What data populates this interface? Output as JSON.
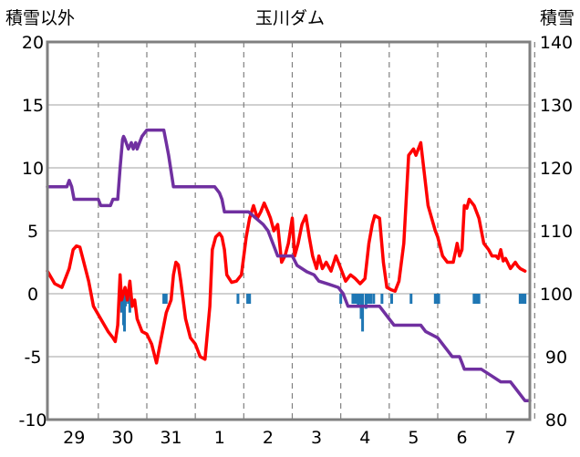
{
  "chart_data": {
    "type": "line",
    "title": "玉川ダム",
    "left_axis_label": "積雪以外",
    "right_axis_label": "積雪",
    "left_ylim": [
      -10,
      20
    ],
    "right_ylim": [
      80,
      140
    ],
    "left_ticks": [
      "20",
      "15",
      "10",
      "5",
      "0",
      "-5",
      "-10"
    ],
    "right_ticks": [
      "140",
      "130",
      "120",
      "110",
      "100",
      "90",
      "80"
    ],
    "x_range": [
      -0.55,
      9.4
    ],
    "categories": [
      "29",
      "30",
      "31",
      "1",
      "2",
      "3",
      "4",
      "5",
      "6",
      "7"
    ],
    "grid": true,
    "colors": {
      "temperature": "#ff0000",
      "snow": "#7030a0",
      "precip": "#1f77b4",
      "frame": "#808080"
    },
    "series": [
      {
        "axis": "left",
        "style": "line",
        "x": [
          -0.55,
          -0.4,
          -0.25,
          -0.1,
          -0.02,
          0.05,
          0.12,
          0.2,
          0.3,
          0.4,
          0.55,
          0.7,
          0.8,
          0.85,
          0.9,
          0.95,
          0.98,
          1.05,
          1.1,
          1.15,
          1.2,
          1.25,
          1.3,
          1.4,
          1.5,
          1.6,
          1.7,
          1.8,
          1.9,
          2.0,
          2.05,
          2.1,
          2.15,
          2.2,
          2.3,
          2.4,
          2.5,
          2.6,
          2.7,
          2.8,
          2.85,
          2.92,
          3.0,
          3.05,
          3.1,
          3.15,
          3.25,
          3.35,
          3.45,
          3.55,
          3.62,
          3.7,
          3.78,
          3.85,
          3.92,
          4.0,
          4.05,
          4.12,
          4.2,
          4.28,
          4.35,
          4.42,
          4.5,
          4.55,
          4.62,
          4.7,
          4.78,
          4.85,
          4.92,
          5.0,
          5.05,
          5.12,
          5.2,
          5.3,
          5.4,
          5.5,
          5.6,
          5.7,
          5.8,
          5.9,
          6.0,
          6.08,
          6.15,
          6.2,
          6.3,
          6.38,
          6.45,
          6.55,
          6.62,
          6.7,
          6.8,
          6.9,
          7.0,
          7.05,
          7.15,
          7.3,
          7.45,
          7.5,
          7.6,
          7.7,
          7.82,
          7.9,
          7.95,
          8.0,
          8.05,
          8.1,
          8.15,
          8.25,
          8.35,
          8.45,
          8.55,
          8.62,
          8.7,
          8.75,
          8.8,
          8.85,
          8.9,
          9.0,
          9.1,
          9.15,
          9.2,
          9.3
        ],
        "y": [
          1.8,
          0.8,
          0.5,
          2.0,
          3.5,
          3.8,
          3.7,
          2.5,
          1.0,
          -1.0,
          -2.0,
          -3.0,
          -3.5,
          -3.8,
          -2.5,
          1.5,
          -0.5,
          0.5,
          -0.5,
          1.0,
          -1.0,
          -0.5,
          -2.0,
          -3.0,
          -3.2,
          -4.0,
          -5.5,
          -3.5,
          -1.5,
          -0.5,
          1.5,
          2.5,
          2.3,
          1.0,
          -2.0,
          -3.5,
          -4.0,
          -5.0,
          -5.2,
          -1.0,
          3.5,
          4.5,
          4.8,
          4.5,
          3.5,
          1.5,
          0.9,
          1.0,
          1.5,
          4.5,
          6.0,
          7.0,
          6.0,
          6.5,
          7.2,
          6.5,
          6.0,
          5.0,
          5.5,
          2.5,
          3.0,
          4.0,
          6.0,
          3.0,
          4.0,
          5.5,
          6.2,
          4.5,
          3.0,
          2.0,
          3.0,
          2.0,
          2.5,
          1.8,
          3.0,
          2.0,
          1.0,
          1.5,
          1.2,
          0.8,
          1.2,
          4.0,
          5.5,
          6.2,
          6.0,
          2.5,
          0.5,
          0.3,
          0.2,
          1.0,
          4.0,
          11.0,
          11.5,
          11.0,
          12.0,
          7.0,
          5.0,
          4.5,
          3.0,
          2.5,
          2.5,
          4.0,
          3.0,
          3.5,
          7.0,
          6.8,
          7.5,
          7.0,
          6.0,
          4.0,
          3.5,
          3.0,
          3.0,
          2.8,
          3.5,
          2.6,
          2.8,
          2.0,
          2.5,
          2.2,
          2.0,
          1.8
        ]
      },
      {
        "axis": "right",
        "style": "line",
        "x": [
          -0.55,
          -0.15,
          -0.1,
          -0.05,
          0.0,
          0.5,
          0.55,
          0.75,
          0.8,
          0.9,
          0.95,
          1.0,
          1.02,
          1.05,
          1.12,
          1.18,
          1.22,
          1.27,
          1.3,
          1.35,
          1.4,
          1.45,
          1.5,
          1.55,
          1.6,
          1.65,
          1.75,
          1.85,
          1.9,
          1.95,
          2.05,
          2.5,
          2.9,
          2.95,
          3.0,
          3.05,
          3.1,
          3.15,
          3.2,
          3.6,
          3.9,
          4.0,
          4.1,
          4.2,
          4.25,
          4.5,
          4.6,
          4.8,
          4.95,
          5.05,
          5.25,
          5.45,
          5.55,
          5.65,
          5.9,
          6.3,
          6.6,
          6.7,
          6.95,
          7.15,
          7.25,
          7.5,
          7.7,
          7.8,
          7.95,
          8.0,
          8.05,
          8.4,
          8.6,
          8.8,
          9.0,
          9.1,
          9.3,
          9.4
        ],
        "y": [
          117,
          117,
          118,
          117,
          115,
          115,
          114,
          114,
          115,
          115,
          120,
          124.5,
          125,
          124.5,
          123,
          124,
          123,
          124,
          123,
          124,
          125,
          125.5,
          126,
          126,
          126,
          126,
          126,
          126,
          124,
          122,
          117,
          117,
          117,
          116.5,
          116,
          115,
          113,
          113,
          113,
          113,
          111,
          110,
          108,
          106,
          106,
          106,
          104.5,
          103.5,
          103,
          102,
          101.5,
          101,
          100,
          98,
          98,
          98,
          95,
          95,
          95,
          95,
          94,
          93,
          91,
          90,
          90,
          89,
          88,
          88,
          87,
          86,
          86,
          85,
          83,
          83
        ]
      },
      {
        "axis": "left",
        "style": "bar",
        "x": [
          0.98,
          1.0,
          1.02,
          1.04,
          1.06,
          1.12,
          1.15,
          1.85,
          1.9,
          3.38,
          3.58,
          3.62,
          5.5,
          5.75,
          5.78,
          5.82,
          5.86,
          5.9,
          5.92,
          5.95,
          6.02,
          6.05,
          6.1,
          6.12,
          6.18,
          6.35,
          6.55,
          6.95,
          7.45,
          7.48,
          7.52,
          8.25,
          8.3,
          8.35,
          9.2,
          9.25,
          9.3
        ],
        "y": [
          -1.5,
          -1.0,
          -2.5,
          -3.0,
          -1.0,
          -0.8,
          -1.5,
          -0.8,
          -0.8,
          -0.8,
          -0.8,
          -0.8,
          -0.8,
          -0.8,
          -0.8,
          -0.8,
          -1.0,
          -0.8,
          -2.0,
          -3.0,
          -1.2,
          -0.8,
          -0.8,
          -0.8,
          -0.8,
          -0.8,
          -0.8,
          -0.8,
          -0.8,
          -0.8,
          -0.8,
          -0.8,
          -0.8,
          -0.8,
          -0.8,
          -0.8,
          -0.8
        ]
      }
    ]
  }
}
